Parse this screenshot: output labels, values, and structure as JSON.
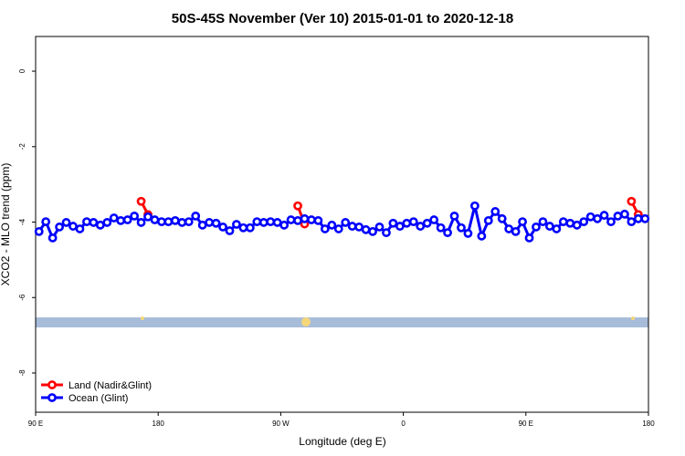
{
  "chart_data": {
    "type": "line",
    "title": "50S-45S November (Ver 10)   2015-01-01 to 2020-12-18",
    "x_label": "Longitude (deg E)",
    "y_label": "XCO2 - MLO trend (ppm)",
    "xlim": [
      90,
      540
    ],
    "xticks": [
      {
        "value": 90,
        "label": "90 E"
      },
      {
        "value": 180,
        "label": "180"
      },
      {
        "value": 270,
        "label": "90 W"
      },
      {
        "value": 360,
        "label": "0"
      },
      {
        "value": 450,
        "label": "90 E"
      },
      {
        "value": 540,
        "label": "180"
      }
    ],
    "ylim": [
      -9.04,
      0.92
    ],
    "yticks": [
      0,
      -2,
      -4,
      -6,
      -8
    ],
    "legend": "bottom-left",
    "series": [
      {
        "name": "Land (Nadir&Glint)",
        "color": "#ff0000",
        "x": [
          167.5,
          172.5,
          177.5,
          282.5,
          287.5,
          292.5,
          527.5,
          532.5
        ],
        "values": [
          -3.45,
          -3.8,
          null,
          -3.57,
          -4.05,
          null,
          -3.45,
          -3.8
        ]
      },
      {
        "name": "Ocean (Glint)",
        "color": "#0000ff",
        "x": [
          92.5,
          97.5,
          102.5,
          107.5,
          112.5,
          117.5,
          122.5,
          127.5,
          132.5,
          137.5,
          142.5,
          147.5,
          152.5,
          157.5,
          162.5,
          167.5,
          172.5,
          177.5,
          182.5,
          187.5,
          192.5,
          197.5,
          202.5,
          207.5,
          212.5,
          217.5,
          222.5,
          227.5,
          232.5,
          237.5,
          242.5,
          247.5,
          252.5,
          257.5,
          262.5,
          267.5,
          272.5,
          277.5,
          282.5,
          287.5,
          292.5,
          297.5,
          302.5,
          307.5,
          312.5,
          317.5,
          322.5,
          327.5,
          332.5,
          337.5,
          342.5,
          347.5,
          352.5,
          357.5,
          362.5,
          367.5,
          372.5,
          377.5,
          382.5,
          387.5,
          392.5,
          397.5,
          402.5,
          407.5,
          412.5,
          417.5,
          422.5,
          427.5,
          432.5,
          437.5,
          442.5,
          447.5,
          452.5,
          457.5,
          462.5,
          467.5,
          472.5,
          477.5,
          482.5,
          487.5,
          492.5,
          497.5,
          502.5,
          507.5,
          512.5,
          517.5,
          522.5,
          527.5,
          532.5,
          537.5
        ],
        "values": [
          -4.25,
          -3.99,
          -4.42,
          -4.13,
          -4.01,
          -4.11,
          -4.18,
          -3.99,
          -4.01,
          -4.08,
          -4.01,
          -3.89,
          -3.96,
          -3.94,
          -3.84,
          -4.01,
          -3.86,
          -3.94,
          -3.99,
          -3.99,
          -3.96,
          -4.01,
          -3.99,
          -3.84,
          -4.08,
          -4.01,
          -4.03,
          -4.13,
          -4.23,
          -4.06,
          -4.15,
          -4.15,
          -3.99,
          -4.01,
          -3.99,
          -4.01,
          -4.08,
          -3.94,
          -3.96,
          -3.91,
          -3.94,
          -3.96,
          -4.18,
          -4.08,
          -4.18,
          -4.01,
          -4.11,
          -4.13,
          -4.2,
          -4.25,
          -4.13,
          -4.28,
          -4.03,
          -4.11,
          -4.03,
          -3.99,
          -4.11,
          -4.03,
          -3.94,
          -4.15,
          -4.28,
          -3.84,
          -4.15,
          -4.3,
          -3.57,
          -4.37,
          -3.96,
          -3.72,
          -3.91,
          -4.18,
          -4.25,
          -3.99,
          -4.42,
          -4.13,
          -3.99,
          -4.11,
          -4.18,
          -3.99,
          -4.03,
          -4.08,
          -3.99,
          -3.86,
          -3.91,
          -3.82,
          -3.99,
          -3.84,
          -3.79,
          -3.99,
          -3.91,
          -3.91
        ]
      }
    ]
  }
}
